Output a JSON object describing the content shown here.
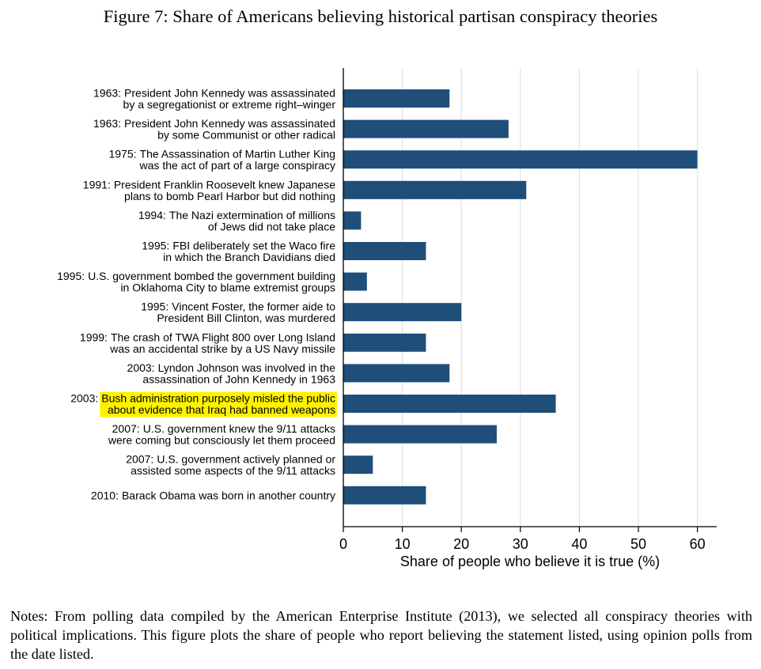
{
  "figure": {
    "title": "Figure 7: Share of Americans believing historical partisan conspiracy theories",
    "notes": "Notes: From polling data compiled by the American Enterprise Institute (2013), we selected all conspiracy theories with political implications. This figure plots the share of people who report believing the statement listed, using opinion polls from the date listed."
  },
  "chart_data": {
    "type": "bar",
    "orientation": "horizontal",
    "title": "",
    "xlabel": "Share of people who believe it is true (%)",
    "ylabel": "",
    "xlim": [
      0,
      63
    ],
    "xticks": [
      0,
      10,
      20,
      30,
      40,
      50,
      60
    ],
    "grid": true,
    "colors": {
      "bar": "#1f4e79",
      "grid": "#dce9ea",
      "highlight": "#fff200"
    },
    "categories": [
      {
        "year": "1963:",
        "lines": [
          "President John Kennedy was assassinated",
          "by a segregationist or extreme right–winger"
        ],
        "value": 18,
        "highlight": false
      },
      {
        "year": "1963:",
        "lines": [
          "President John Kennedy was assassinated",
          "by some Communist or other radical"
        ],
        "value": 28,
        "highlight": false
      },
      {
        "year": "1975:",
        "lines": [
          "The Assassination of Martin Luther King",
          "was the act of part of a large conspiracy"
        ],
        "value": 60,
        "highlight": false
      },
      {
        "year": "1991:",
        "lines": [
          "President Franklin Roosevelt knew Japanese",
          "plans to bomb Pearl Harbor but did nothing"
        ],
        "value": 31,
        "highlight": false
      },
      {
        "year": "1994:",
        "lines": [
          "The Nazi extermination of millions",
          "of Jews did not take place"
        ],
        "value": 3,
        "highlight": false
      },
      {
        "year": "1995:",
        "lines": [
          "FBI deliberately set the Waco fire",
          "in which the Branch Davidians died"
        ],
        "value": 14,
        "highlight": false
      },
      {
        "year": "1995:",
        "lines": [
          "U.S. government bombed the government building",
          "in Oklahoma City to blame extremist groups"
        ],
        "value": 4,
        "highlight": false
      },
      {
        "year": "1995:",
        "lines": [
          "Vincent Foster, the former aide to",
          "President Bill Clinton, was murdered"
        ],
        "value": 20,
        "highlight": false
      },
      {
        "year": "1999:",
        "lines": [
          "The crash of TWA Flight 800 over Long Island",
          "was an accidental strike by a US Navy missile"
        ],
        "value": 14,
        "highlight": false
      },
      {
        "year": "2003:",
        "lines": [
          "Lyndon Johnson was involved in the",
          "assassination of John Kennedy in 1963"
        ],
        "value": 18,
        "highlight": false
      },
      {
        "year": "2003:",
        "lines": [
          "Bush administration purposely misled the public",
          "about evidence that Iraq had banned weapons"
        ],
        "value": 36,
        "highlight": true
      },
      {
        "year": "2007:",
        "lines": [
          "U.S. government knew the 9/11 attacks",
          "were coming but consciously let them proceed"
        ],
        "value": 26,
        "highlight": false
      },
      {
        "year": "2007:",
        "lines": [
          "U.S. government actively planned or",
          "assisted some aspects of the 9/11 attacks"
        ],
        "value": 5,
        "highlight": false
      },
      {
        "year": "2010:",
        "lines": [
          "Barack Obama was born in another country"
        ],
        "value": 14,
        "highlight": false
      }
    ]
  }
}
